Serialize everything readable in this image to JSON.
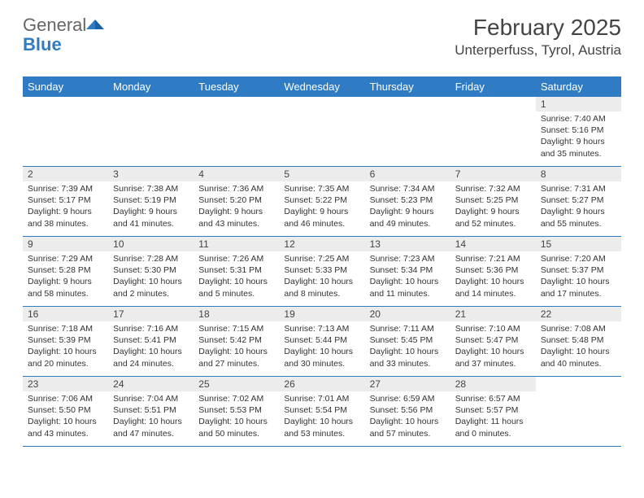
{
  "logo": {
    "part1": "General",
    "part2": "Blue"
  },
  "title": "February 2025",
  "location": "Unterperfuss, Tyrol, Austria",
  "colors": {
    "accent": "#2f7cc4",
    "header_bg": "#2f7cc4",
    "header_text": "#ffffff",
    "daynum_bg": "#ececec",
    "text": "#333333"
  },
  "weekdays": [
    "Sunday",
    "Monday",
    "Tuesday",
    "Wednesday",
    "Thursday",
    "Friday",
    "Saturday"
  ],
  "weeks": [
    [
      null,
      null,
      null,
      null,
      null,
      null,
      {
        "n": "1",
        "sr": "Sunrise: 7:40 AM",
        "ss": "Sunset: 5:16 PM",
        "dl": "Daylight: 9 hours and 35 minutes."
      }
    ],
    [
      {
        "n": "2",
        "sr": "Sunrise: 7:39 AM",
        "ss": "Sunset: 5:17 PM",
        "dl": "Daylight: 9 hours and 38 minutes."
      },
      {
        "n": "3",
        "sr": "Sunrise: 7:38 AM",
        "ss": "Sunset: 5:19 PM",
        "dl": "Daylight: 9 hours and 41 minutes."
      },
      {
        "n": "4",
        "sr": "Sunrise: 7:36 AM",
        "ss": "Sunset: 5:20 PM",
        "dl": "Daylight: 9 hours and 43 minutes."
      },
      {
        "n": "5",
        "sr": "Sunrise: 7:35 AM",
        "ss": "Sunset: 5:22 PM",
        "dl": "Daylight: 9 hours and 46 minutes."
      },
      {
        "n": "6",
        "sr": "Sunrise: 7:34 AM",
        "ss": "Sunset: 5:23 PM",
        "dl": "Daylight: 9 hours and 49 minutes."
      },
      {
        "n": "7",
        "sr": "Sunrise: 7:32 AM",
        "ss": "Sunset: 5:25 PM",
        "dl": "Daylight: 9 hours and 52 minutes."
      },
      {
        "n": "8",
        "sr": "Sunrise: 7:31 AM",
        "ss": "Sunset: 5:27 PM",
        "dl": "Daylight: 9 hours and 55 minutes."
      }
    ],
    [
      {
        "n": "9",
        "sr": "Sunrise: 7:29 AM",
        "ss": "Sunset: 5:28 PM",
        "dl": "Daylight: 9 hours and 58 minutes."
      },
      {
        "n": "10",
        "sr": "Sunrise: 7:28 AM",
        "ss": "Sunset: 5:30 PM",
        "dl": "Daylight: 10 hours and 2 minutes."
      },
      {
        "n": "11",
        "sr": "Sunrise: 7:26 AM",
        "ss": "Sunset: 5:31 PM",
        "dl": "Daylight: 10 hours and 5 minutes."
      },
      {
        "n": "12",
        "sr": "Sunrise: 7:25 AM",
        "ss": "Sunset: 5:33 PM",
        "dl": "Daylight: 10 hours and 8 minutes."
      },
      {
        "n": "13",
        "sr": "Sunrise: 7:23 AM",
        "ss": "Sunset: 5:34 PM",
        "dl": "Daylight: 10 hours and 11 minutes."
      },
      {
        "n": "14",
        "sr": "Sunrise: 7:21 AM",
        "ss": "Sunset: 5:36 PM",
        "dl": "Daylight: 10 hours and 14 minutes."
      },
      {
        "n": "15",
        "sr": "Sunrise: 7:20 AM",
        "ss": "Sunset: 5:37 PM",
        "dl": "Daylight: 10 hours and 17 minutes."
      }
    ],
    [
      {
        "n": "16",
        "sr": "Sunrise: 7:18 AM",
        "ss": "Sunset: 5:39 PM",
        "dl": "Daylight: 10 hours and 20 minutes."
      },
      {
        "n": "17",
        "sr": "Sunrise: 7:16 AM",
        "ss": "Sunset: 5:41 PM",
        "dl": "Daylight: 10 hours and 24 minutes."
      },
      {
        "n": "18",
        "sr": "Sunrise: 7:15 AM",
        "ss": "Sunset: 5:42 PM",
        "dl": "Daylight: 10 hours and 27 minutes."
      },
      {
        "n": "19",
        "sr": "Sunrise: 7:13 AM",
        "ss": "Sunset: 5:44 PM",
        "dl": "Daylight: 10 hours and 30 minutes."
      },
      {
        "n": "20",
        "sr": "Sunrise: 7:11 AM",
        "ss": "Sunset: 5:45 PM",
        "dl": "Daylight: 10 hours and 33 minutes."
      },
      {
        "n": "21",
        "sr": "Sunrise: 7:10 AM",
        "ss": "Sunset: 5:47 PM",
        "dl": "Daylight: 10 hours and 37 minutes."
      },
      {
        "n": "22",
        "sr": "Sunrise: 7:08 AM",
        "ss": "Sunset: 5:48 PM",
        "dl": "Daylight: 10 hours and 40 minutes."
      }
    ],
    [
      {
        "n": "23",
        "sr": "Sunrise: 7:06 AM",
        "ss": "Sunset: 5:50 PM",
        "dl": "Daylight: 10 hours and 43 minutes."
      },
      {
        "n": "24",
        "sr": "Sunrise: 7:04 AM",
        "ss": "Sunset: 5:51 PM",
        "dl": "Daylight: 10 hours and 47 minutes."
      },
      {
        "n": "25",
        "sr": "Sunrise: 7:02 AM",
        "ss": "Sunset: 5:53 PM",
        "dl": "Daylight: 10 hours and 50 minutes."
      },
      {
        "n": "26",
        "sr": "Sunrise: 7:01 AM",
        "ss": "Sunset: 5:54 PM",
        "dl": "Daylight: 10 hours and 53 minutes."
      },
      {
        "n": "27",
        "sr": "Sunrise: 6:59 AM",
        "ss": "Sunset: 5:56 PM",
        "dl": "Daylight: 10 hours and 57 minutes."
      },
      {
        "n": "28",
        "sr": "Sunrise: 6:57 AM",
        "ss": "Sunset: 5:57 PM",
        "dl": "Daylight: 11 hours and 0 minutes."
      },
      null
    ]
  ]
}
